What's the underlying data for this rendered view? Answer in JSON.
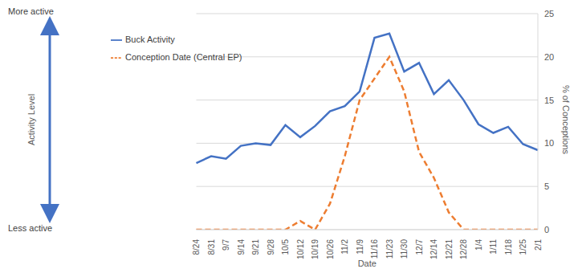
{
  "chart_data": {
    "type": "line",
    "x_label": "Date",
    "y_label": "% of Conceptions",
    "left_label": {
      "title": "Activity Level",
      "top": "More active",
      "bottom": "Less active"
    },
    "categories": [
      "8/24",
      "8/31",
      "9/7",
      "9/14",
      "9/21",
      "9/28",
      "10/5",
      "10/12",
      "10/19",
      "10/26",
      "11/2",
      "11/9",
      "11/16",
      "11/23",
      "11/30",
      "12/7",
      "12/14",
      "12/21",
      "12/28",
      "1/4",
      "1/11",
      "1/18",
      "1/25",
      "2/1"
    ],
    "series": [
      {
        "name": "Buck Activity",
        "color": "#4472c4",
        "line_style": "solid",
        "marker": "none",
        "values": [
          7.7,
          8.5,
          8.2,
          9.7,
          10.0,
          9.8,
          12.1,
          10.7,
          12.0,
          13.7,
          14.3,
          16.0,
          22.2,
          22.7,
          18.3,
          19.3,
          15.7,
          17.3,
          15.0,
          12.2,
          11.2,
          11.9,
          9.9,
          9.2
        ]
      },
      {
        "name": "Conception Date (Central EP)",
        "color": "#ed7d31",
        "line_style": "dashed",
        "marker": "none",
        "values": [
          0,
          0,
          0,
          0,
          0,
          0,
          0,
          1.0,
          0,
          3.0,
          8.5,
          15.0,
          17.5,
          20.0,
          16.0,
          9.0,
          6.0,
          2.0,
          0,
          0,
          0,
          0,
          0,
          0
        ]
      }
    ],
    "ylim": [
      0,
      25
    ],
    "yticks": [
      0,
      5,
      10,
      15,
      20,
      25
    ],
    "grid": true,
    "legend": "upper left"
  }
}
